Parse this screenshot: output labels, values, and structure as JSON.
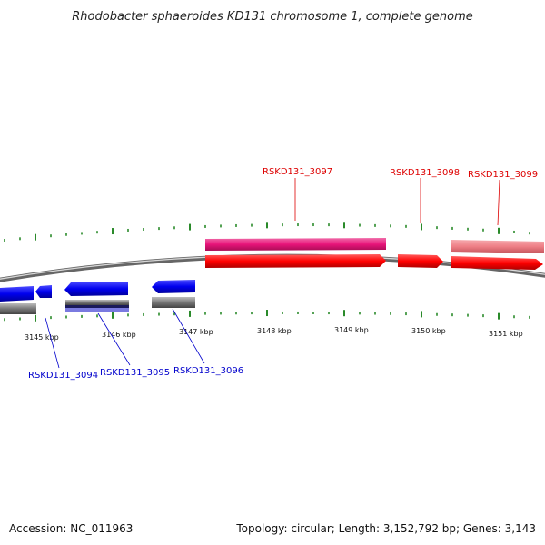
{
  "header": {
    "title": "Rhodobacter sphaeroides KD131 chromosome 1, complete genome"
  },
  "footer": {
    "accession": "Accession: NC_011963",
    "summary": "Topology: circular; Length: 3,152,792 bp; Genes: 3,143"
  },
  "colors": {
    "forward_gene": "#ff0000",
    "forward_feature": "#e8147a",
    "forward_feature_light": "#ee7f86",
    "reverse_gene": "#0000ee",
    "reverse_feature": "#7a7ae0",
    "reverse_gray": "#777777",
    "tick": "#2a8a2a",
    "label_forward": "#dd0000",
    "label_reverse": "#0000cc"
  },
  "ticks": {
    "labels": [
      "3145 kbp",
      "3146 kbp",
      "3147 kbp",
      "3148 kbp",
      "3149 kbp",
      "3150 kbp",
      "3151 kbp"
    ]
  },
  "genes": {
    "forward": [
      {
        "id": "RSKD131_3097"
      },
      {
        "id": "RSKD131_3098"
      },
      {
        "id": "RSKD131_3099"
      }
    ],
    "reverse": [
      {
        "id": "RSKD131_3094"
      },
      {
        "id": "RSKD131_3095"
      },
      {
        "id": "RSKD131_3096"
      }
    ]
  }
}
